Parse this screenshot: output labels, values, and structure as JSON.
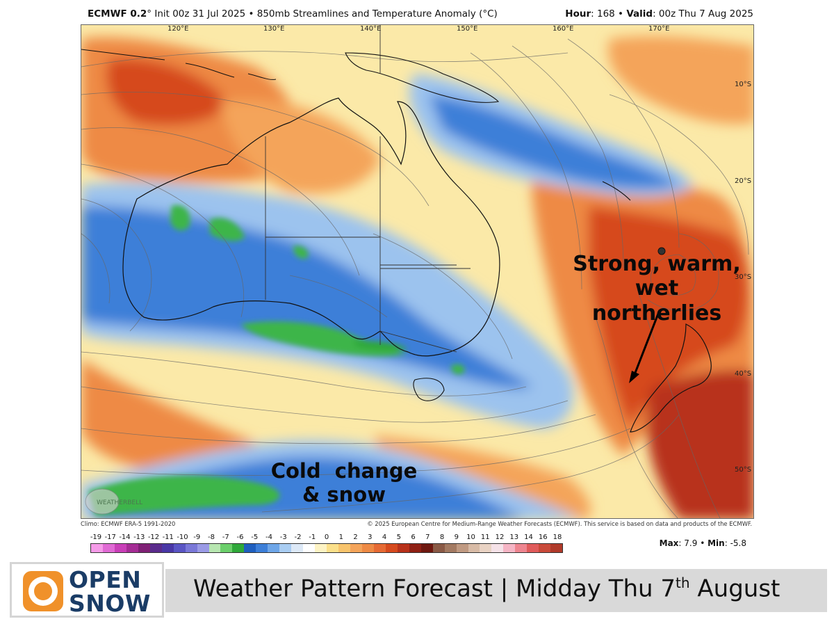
{
  "header": {
    "model": "ECMWF 0.2",
    "degree_mark": "°",
    "init": "Init 00z 31 Jul 2025",
    "bullet": "•",
    "product": "850mb Streamlines and Temperature Anomaly (°C)",
    "hour_label": "Hour",
    "hour_value": ": 168",
    "valid_label": "Valid",
    "valid_value": ": 00z Thu 7 Aug 2025"
  },
  "map": {
    "longitude_labels": [
      "120°E",
      "130°E",
      "140°E",
      "150°E",
      "160°E",
      "170°E"
    ],
    "latitude_labels": [
      "10°S",
      "20°S",
      "30°S",
      "40°S",
      "50°S"
    ],
    "annotations": {
      "warm_line1": "Strong, warm,",
      "warm_line2": "wet northerlies",
      "cold_line1": "Cold  change",
      "cold_line2": "& snow"
    },
    "watermark": "WEATHERBELL",
    "low_pressure_marker": "L-center",
    "colors": {
      "ocean_base": "#fbe9a8",
      "warm_strong": "#d64a1e",
      "warm_mid": "#ee8a45",
      "cold_blue": "#3d7fd8",
      "cold_light": "#9cc3ee",
      "cold_green": "#3db54a",
      "coastline": "#111111"
    }
  },
  "credits": {
    "climo": "Climo: ECMWF ERA-5 1991-2020",
    "copyright": "© 2025 European Centre for Medium-Range Weather Forecasts (ECMWF). This service is based on data and products of the ECMWF."
  },
  "colorbar": {
    "labels": [
      "-19",
      "-17",
      "-14",
      "-13",
      "-12",
      "-11",
      "-10",
      "-9",
      "-8",
      "-7",
      "-6",
      "-5",
      "-4",
      "-3",
      "-2",
      "-1",
      "0",
      "1",
      "2",
      "3",
      "4",
      "5",
      "6",
      "7",
      "8",
      "9",
      "10",
      "11",
      "12",
      "13",
      "14",
      "16",
      "18"
    ],
    "colors": [
      "#f59be8",
      "#e06ad4",
      "#c93fb8",
      "#a52c95",
      "#7f2075",
      "#5a2b8c",
      "#4937a6",
      "#5a55c4",
      "#7a78d8",
      "#9b9be6",
      "#b7e6b0",
      "#6bcf6b",
      "#2fa83a",
      "#1f5fbf",
      "#3d7fd8",
      "#6ea6e8",
      "#a9cdf2",
      "#dde9f7",
      "#ffffff",
      "#fdf3c4",
      "#fbe08a",
      "#f8c46c",
      "#f4a45a",
      "#ee8a45",
      "#e66a34",
      "#d64a1e",
      "#b8311a",
      "#8f2014",
      "#6e1810",
      "#8a5a46",
      "#a37a62",
      "#c09a82",
      "#d8bba6",
      "#e9d3c4",
      "#f5e2e8",
      "#f5b5c5",
      "#ee8590",
      "#e05b5b",
      "#c94a3a",
      "#b03a2a"
    ],
    "max_label": "Max",
    "max_value": ": 7.9",
    "min_label": "Min",
    "min_value": ": -5.8"
  },
  "logo": {
    "line1": "OPEN",
    "line2": "SNOW",
    "icon": "snowflake-sun-icon",
    "brand_color": "#f0912a",
    "text_color": "#1a3c66"
  },
  "banner": {
    "title_prefix": "Weather Pattern Forecast | Midday Thu 7",
    "title_sup": "th",
    "title_suffix": " August"
  }
}
